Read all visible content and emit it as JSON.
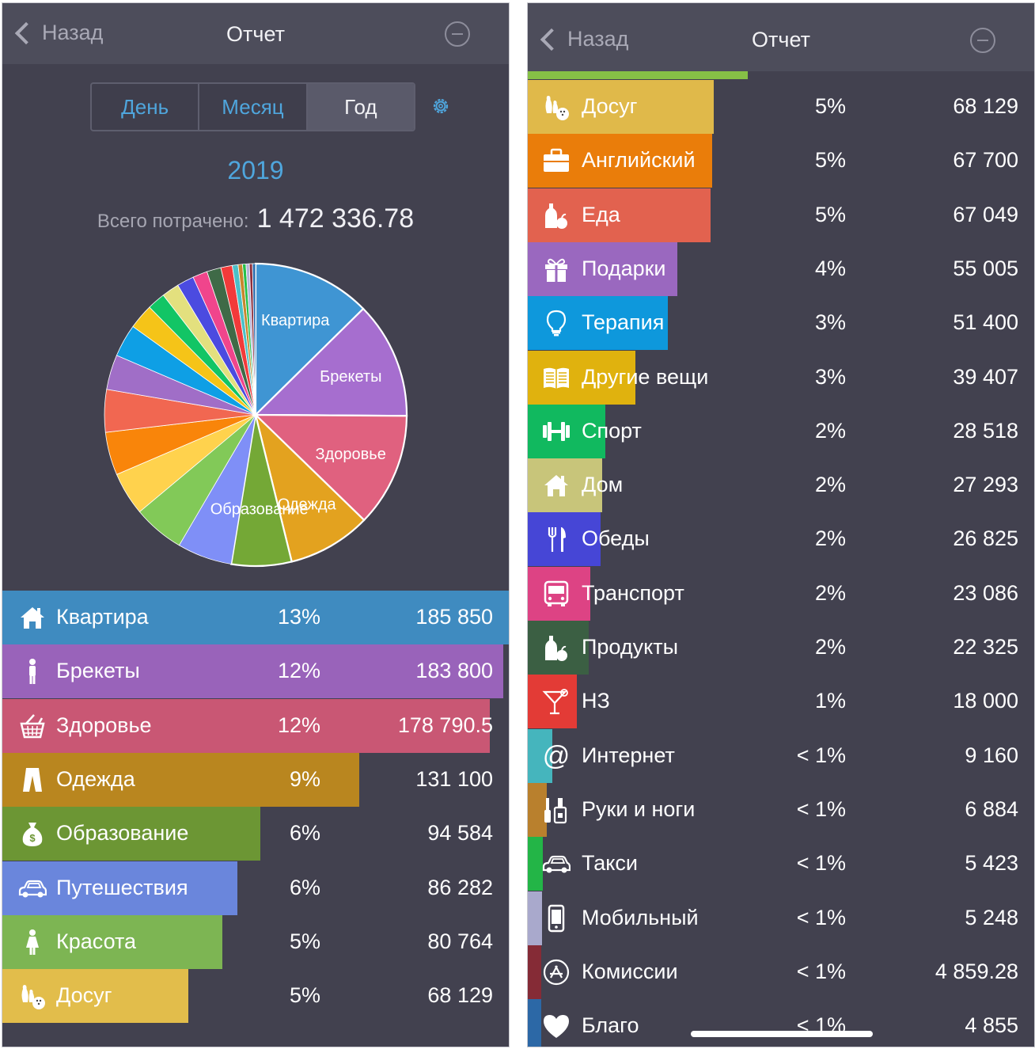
{
  "left": {
    "nav": {
      "back_label": "Назад",
      "title": "Отчет"
    },
    "segments": [
      {
        "label": "День"
      },
      {
        "label": "Месяц"
      },
      {
        "label": "Год"
      }
    ],
    "year": "2019",
    "total_label": "Всего потрачено:",
    "total_value": "1 472 336.78",
    "rows": [
      {
        "name": "Квартира",
        "percent": "13%",
        "amount": "185 850",
        "color": "#3f8bc0",
        "share": 1.0,
        "icon": "house-icon"
      },
      {
        "name": "Брекеты",
        "percent": "12%",
        "amount": "183 800",
        "color": "#9963ba",
        "share": 0.989,
        "icon": "person-icon"
      },
      {
        "name": "Здоровье",
        "percent": "12%",
        "amount": "178 790.5",
        "color": "#c95774",
        "share": 0.962,
        "icon": "basket-icon"
      },
      {
        "name": "Одежда",
        "percent": "9%",
        "amount": "131 100",
        "color": "#b9861f",
        "share": 0.705,
        "icon": "pants-icon"
      },
      {
        "name": "Образование",
        "percent": "6%",
        "amount": "94 584",
        "color": "#6c9634",
        "share": 0.509,
        "icon": "money-bag-icon"
      },
      {
        "name": "Путешествия",
        "percent": "6%",
        "amount": "86 282",
        "color": "#6a86dc",
        "share": 0.464,
        "icon": "car-icon"
      },
      {
        "name": "Красота",
        "percent": "5%",
        "amount": "80 764",
        "color": "#7db553",
        "share": 0.435,
        "icon": "girl-icon"
      },
      {
        "name": "Досуг",
        "percent": "5%",
        "amount": "68 129",
        "color": "#e2bd4b",
        "share": 0.367,
        "icon": "bowling-icon"
      }
    ]
  },
  "chart_data": {
    "type": "pie",
    "slices": [
      {
        "label": "Квартира",
        "value": 185850,
        "color": "#3f95d3",
        "shown": true
      },
      {
        "label": "Брекеты",
        "value": 183800,
        "color": "#a66ecf",
        "shown": true
      },
      {
        "label": "Здоровье",
        "value": 178790.5,
        "color": "#e0617f",
        "shown": true
      },
      {
        "label": "Одежда",
        "value": 131100,
        "color": "#e3a21f",
        "shown": true
      },
      {
        "label": "Образование",
        "value": 94584,
        "color": "#74a836",
        "shown": true
      },
      {
        "label": "Путешествия",
        "value": 86282,
        "color": "#7f8ff7",
        "shown": false
      },
      {
        "label": "Красота",
        "value": 80764,
        "color": "#82c958",
        "shown": false
      },
      {
        "label": "Досуг",
        "value": 68129,
        "color": "#ffd24d",
        "shown": false
      },
      {
        "label": "Английский",
        "value": 67700,
        "color": "#f9850a",
        "shown": false
      },
      {
        "label": "Еда",
        "value": 67049,
        "color": "#f16751",
        "shown": false
      },
      {
        "label": "Подарки",
        "value": 55005,
        "color": "#a06ec7",
        "shown": false
      },
      {
        "label": "Терапия",
        "value": 51400,
        "color": "#0e9fe5",
        "shown": false
      },
      {
        "label": "Другие вещи",
        "value": 39407,
        "color": "#f5c418",
        "shown": false
      },
      {
        "label": "Спорт",
        "value": 28518,
        "color": "#12c565",
        "shown": false
      },
      {
        "label": "Дом",
        "value": 27293,
        "color": "#e3e07e",
        "shown": false
      },
      {
        "label": "Обеды",
        "value": 26825,
        "color": "#4b4be0",
        "shown": false
      },
      {
        "label": "Транспорт",
        "value": 23086,
        "color": "#f0458c",
        "shown": false
      },
      {
        "label": "Продукты",
        "value": 22325,
        "color": "#3f6a47",
        "shown": false
      },
      {
        "label": "НЗ",
        "value": 18000,
        "color": "#f23a3a",
        "shown": false
      },
      {
        "label": "Интернет",
        "value": 9160,
        "color": "#4bc0c8",
        "shown": false
      },
      {
        "label": "Руки и ноги",
        "value": 6884,
        "color": "#c8862e",
        "shown": false
      },
      {
        "label": "Такси",
        "value": 5423,
        "color": "#26c04a",
        "shown": false
      },
      {
        "label": "Мобильный",
        "value": 5248,
        "color": "#b4b4d8",
        "shown": false
      },
      {
        "label": "Комиссии",
        "value": 4859.28,
        "color": "#8e2e3a",
        "shown": false
      },
      {
        "label": "Благо",
        "value": 4855,
        "color": "#2d6fb0",
        "shown": false
      }
    ]
  },
  "right": {
    "nav": {
      "back_label": "Назад",
      "title": "Отчет"
    },
    "rows": [
      {
        "name": "Досуг",
        "percent": "5%",
        "amount": "68 129",
        "color": "#e0b94a",
        "share": 0.367,
        "icon": "bowling-icon"
      },
      {
        "name": "Английский",
        "percent": "5%",
        "amount": "67 700",
        "color": "#ea7d0a",
        "share": 0.364,
        "icon": "briefcase-icon"
      },
      {
        "name": "Еда",
        "percent": "5%",
        "amount": "67 049",
        "color": "#e2624f",
        "share": 0.361,
        "icon": "bottle-apple-icon"
      },
      {
        "name": "Подарки",
        "percent": "4%",
        "amount": "55 005",
        "color": "#9a68bf",
        "share": 0.296,
        "icon": "gift-icon"
      },
      {
        "name": "Терапия",
        "percent": "3%",
        "amount": "51 400",
        "color": "#0e98dc",
        "share": 0.277,
        "icon": "lightbulb-icon"
      },
      {
        "name": "Другие вещи",
        "percent": "3%",
        "amount": "39 407",
        "color": "#e0b20e",
        "share": 0.212,
        "icon": "book-icon"
      },
      {
        "name": "Спорт",
        "percent": "2%",
        "amount": "28 518",
        "color": "#11b95f",
        "share": 0.153,
        "icon": "dumbbell-icon"
      },
      {
        "name": "Дом",
        "percent": "2%",
        "amount": "27 293",
        "color": "#c8c57a",
        "share": 0.147,
        "icon": "house-icon"
      },
      {
        "name": "Обеды",
        "percent": "2%",
        "amount": "26 825",
        "color": "#4646d6",
        "share": 0.144,
        "icon": "fork-knife-icon"
      },
      {
        "name": "Транспорт",
        "percent": "2%",
        "amount": "23 086",
        "color": "#dd4384",
        "share": 0.124,
        "icon": "bus-icon"
      },
      {
        "name": "Продукты",
        "percent": "2%",
        "amount": "22 325",
        "color": "#3b5f43",
        "share": 0.12,
        "icon": "bottle-apple-icon"
      },
      {
        "name": "НЗ",
        "percent": "1%",
        "amount": "18 000",
        "color": "#e33b36",
        "share": 0.097,
        "icon": "cocktail-icon"
      },
      {
        "name": "Интернет",
        "percent": "< 1%",
        "amount": "9 160",
        "color": "#45b5bd",
        "share": 0.049,
        "icon": "at-icon"
      },
      {
        "name": "Руки и ноги",
        "percent": "< 1%",
        "amount": "6 884",
        "color": "#b9802d",
        "share": 0.037,
        "icon": "nail-polish-icon"
      },
      {
        "name": "Такси",
        "percent": "< 1%",
        "amount": "5 423",
        "color": "#23b547",
        "share": 0.029,
        "icon": "car-icon"
      },
      {
        "name": "Мобильный",
        "percent": "< 1%",
        "amount": "5 248",
        "color": "#a9a9cc",
        "share": 0.028,
        "icon": "phone-icon"
      },
      {
        "name": "Комиссии",
        "percent": "< 1%",
        "amount": "4 859.28",
        "color": "#852b36",
        "share": 0.026,
        "icon": "app-store-icon"
      },
      {
        "name": "Благо",
        "percent": "< 1%",
        "amount": "4 855",
        "color": "#2c68a6",
        "share": 0.026,
        "icon": "heart-icon"
      }
    ]
  }
}
